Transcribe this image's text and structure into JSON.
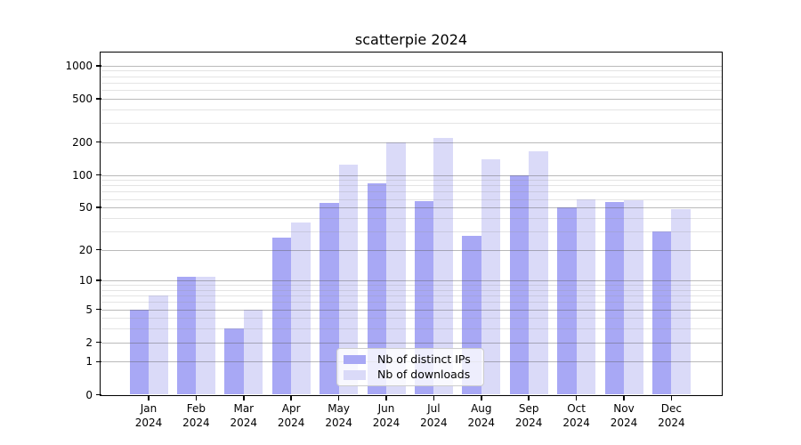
{
  "title": "scatterpie 2024",
  "chart_data": {
    "type": "bar",
    "x_months": [
      "Jan",
      "Feb",
      "Mar",
      "Apr",
      "May",
      "Jun",
      "Jul",
      "Aug",
      "Sep",
      "Oct",
      "Nov",
      "Dec"
    ],
    "x_year": "2024",
    "series": [
      {
        "name": "Nb of distinct IPs",
        "color": "#a8a8f5",
        "values": [
          5,
          11,
          3,
          26,
          55,
          84,
          57,
          27,
          100,
          50,
          56,
          30
        ]
      },
      {
        "name": "Nb of downloads",
        "color": "#dadaf8",
        "values": [
          7,
          11,
          5,
          36,
          125,
          200,
          220,
          140,
          165,
          60,
          58,
          48
        ]
      }
    ],
    "yscale": "log1p",
    "ylim": [
      0,
      1330
    ],
    "y_major_ticks": [
      0,
      1,
      2,
      5,
      10,
      20,
      50,
      100,
      200,
      500,
      1000
    ],
    "y_minor_ticks": [
      3,
      4,
      6,
      7,
      8,
      9,
      30,
      40,
      60,
      70,
      80,
      90,
      300,
      400,
      600,
      700,
      800,
      900
    ],
    "grid": true,
    "legend_position": "lower center"
  },
  "colors": {
    "grid_major": "#bcbcbc",
    "grid_minor": "#e2e2e2",
    "axis": "#000000",
    "background": "#ffffff"
  }
}
